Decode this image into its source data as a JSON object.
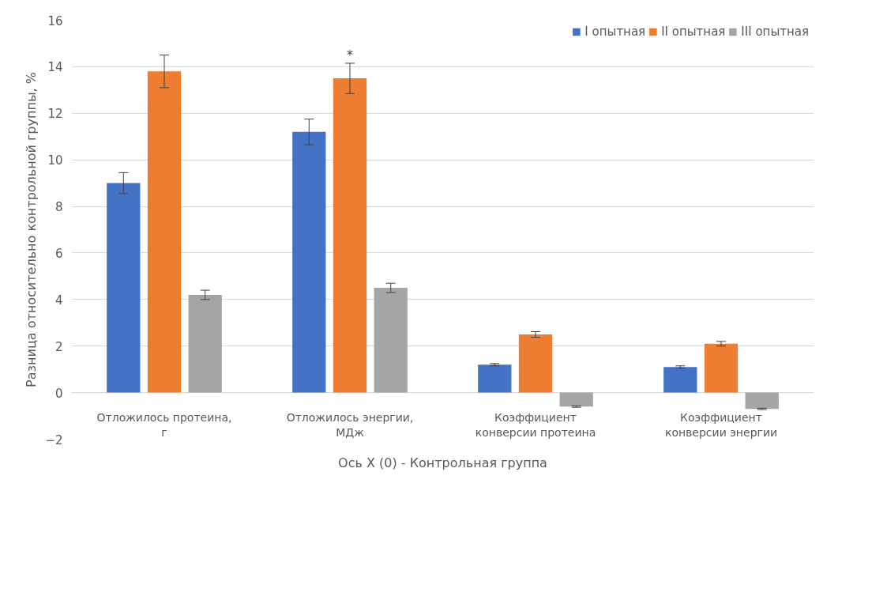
{
  "chart_data": {
    "type": "bar",
    "xlabel": "Ось Х (0) - Контрольная группа",
    "ylabel": "Разница относительно контрольной группы, %",
    "categories": [
      "Отложилось протеина,\nг",
      "Отложилось энергии,\nМДж",
      "Коэффициент\nконверсии протеина",
      "Коэффициент\nконверсии энергии"
    ],
    "series": [
      {
        "name": "I опытная",
        "color": "#4472c4",
        "values": [
          9.0,
          11.2,
          1.2,
          1.1
        ],
        "errors": [
          0.45,
          0.55,
          0.05,
          0.05
        ]
      },
      {
        "name": "II опытная",
        "color": "#ed7d31",
        "values": [
          13.8,
          13.5,
          2.5,
          2.1
        ],
        "errors": [
          0.7,
          0.65,
          0.12,
          0.1
        ]
      },
      {
        "name": "III опытная",
        "color": "#a5a5a5",
        "values": [
          4.2,
          4.5,
          -0.6,
          -0.7
        ],
        "errors": [
          0.2,
          0.2,
          0.03,
          0.03
        ]
      }
    ],
    "ylim": [
      -2,
      16
    ],
    "yticks": [
      -2,
      0,
      2,
      4,
      6,
      8,
      10,
      12,
      14,
      16
    ],
    "grid": "y",
    "legend": "top right",
    "annotations": [
      {
        "text": "*",
        "x": "Отложилось энергии,\nМДж",
        "y": 14.2
      }
    ]
  }
}
